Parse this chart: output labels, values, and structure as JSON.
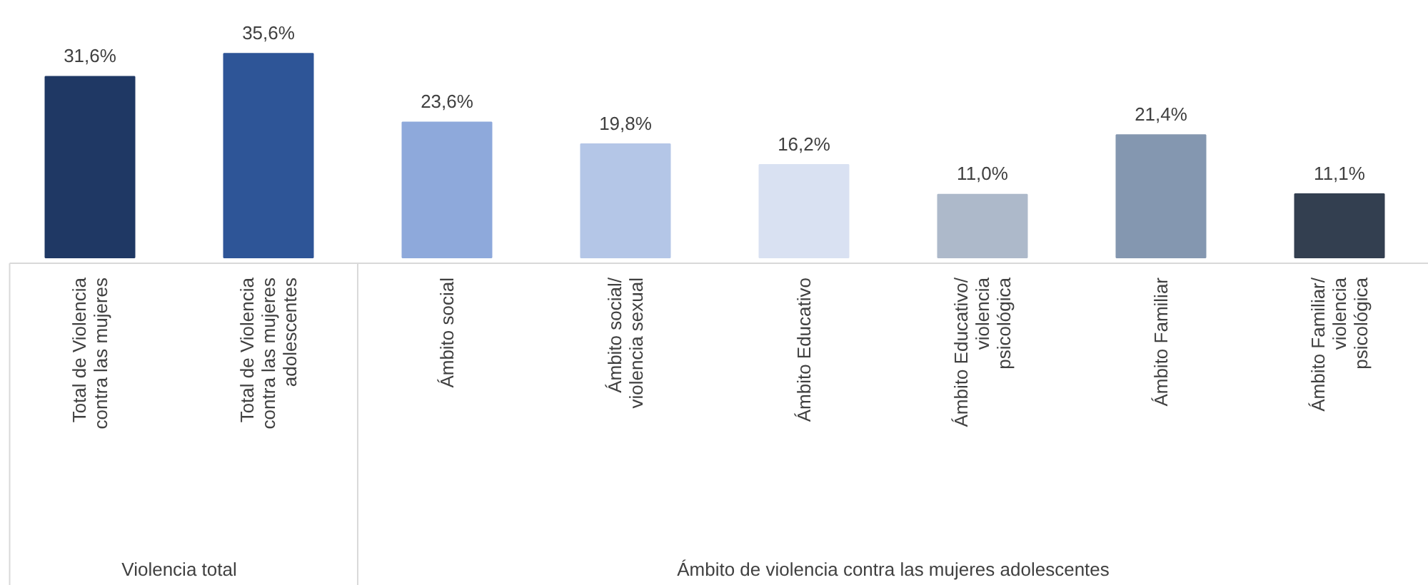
{
  "chart_data": {
    "type": "bar",
    "categories": [
      "Total de Violencia contra las mujeres",
      "Total de Violencia contra las mujeres adolescentes",
      "Ámbito social",
      "Ámbito social/ violencia sexual",
      "Ámbito Educativo",
      "Ámbito Educativo/ violencia psicológica",
      "Ámbito Familiar",
      "Ámbito Familiar/ violencia psicológica"
    ],
    "values": [
      31.6,
      35.6,
      23.6,
      19.8,
      16.2,
      11.0,
      21.4,
      11.1
    ],
    "colors": [
      "#1f3864",
      "#2e5597",
      "#8ea9db",
      "#b4c6e7",
      "#d9e1f2",
      "#adb9ca",
      "#8497b0",
      "#333f50"
    ],
    "value_labels": [
      "31,6%",
      "35,6%",
      "23,6%",
      "19,8%",
      "16,2%",
      "11,0%",
      "21,4%",
      "11,1%"
    ],
    "annotations": [
      "Violencia total",
      "Ámbito de violencia contra las mujeres adolescentes"
    ],
    "grid": false
  }
}
